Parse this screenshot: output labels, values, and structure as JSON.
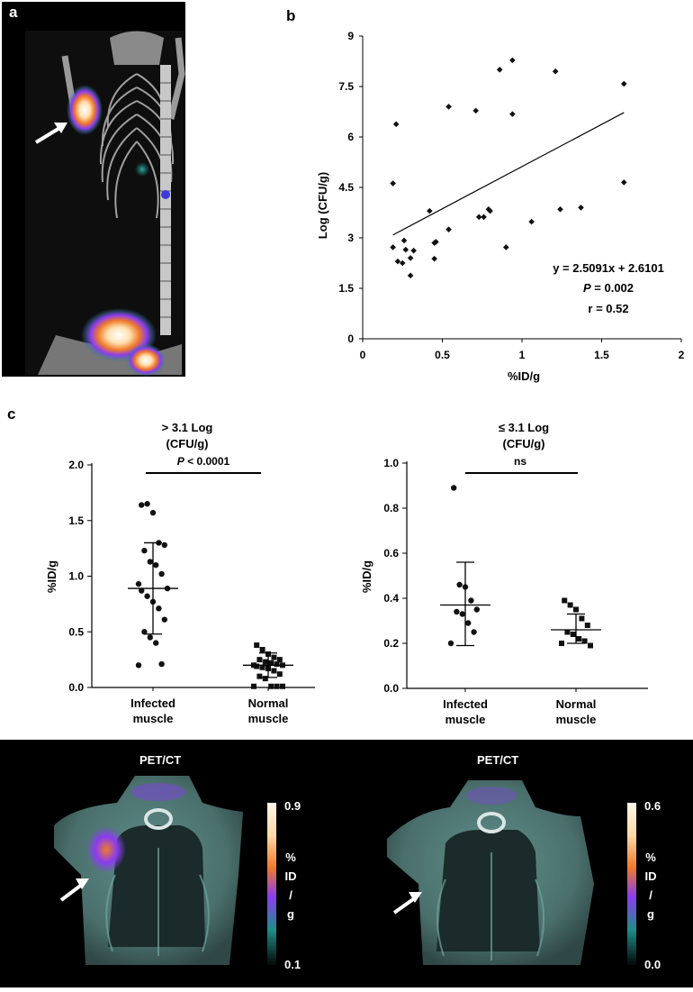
{
  "panels": {
    "a": "a",
    "b": "b",
    "c": "c"
  },
  "chart_data": [
    {
      "id": "b",
      "type": "scatter",
      "title": "",
      "xlabel": "%ID/g",
      "ylabel": "Log (CFU/g)",
      "xlim": [
        0,
        2
      ],
      "ylim": [
        0,
        9
      ],
      "xticks": [
        "0",
        "0.5",
        "1",
        "1.5",
        "2"
      ],
      "yticks": [
        "0",
        "1.5",
        "3",
        "4.5",
        "6",
        "7.5",
        "9"
      ],
      "points": [
        [
          0.19,
          4.62
        ],
        [
          0.21,
          6.38
        ],
        [
          0.19,
          2.72
        ],
        [
          0.22,
          2.3
        ],
        [
          0.25,
          2.25
        ],
        [
          0.26,
          2.92
        ],
        [
          0.27,
          2.65
        ],
        [
          0.3,
          2.4
        ],
        [
          0.32,
          2.62
        ],
        [
          0.3,
          1.88
        ],
        [
          0.42,
          3.8
        ],
        [
          0.45,
          2.38
        ],
        [
          0.45,
          2.85
        ],
        [
          0.46,
          2.88
        ],
        [
          0.54,
          6.9
        ],
        [
          0.54,
          3.25
        ],
        [
          0.71,
          6.78
        ],
        [
          0.73,
          3.62
        ],
        [
          0.76,
          3.62
        ],
        [
          0.79,
          3.85
        ],
        [
          0.8,
          3.8
        ],
        [
          0.86,
          8.0
        ],
        [
          0.9,
          2.72
        ],
        [
          0.94,
          8.28
        ],
        [
          0.94,
          6.68
        ],
        [
          1.06,
          3.48
        ],
        [
          1.21,
          7.95
        ],
        [
          1.24,
          3.85
        ],
        [
          1.37,
          3.9
        ],
        [
          1.64,
          7.58
        ],
        [
          1.64,
          4.65
        ]
      ],
      "regression": {
        "slope": 2.5091,
        "intercept": 2.6101,
        "x_range": [
          0.19,
          1.64
        ]
      },
      "annotations": {
        "equation": "y = 2.5091x + 2.6101",
        "p_label": "P",
        "p_value": " = 0.002",
        "r": "r = 0.52"
      }
    },
    {
      "id": "c-left",
      "type": "scatter",
      "title_line1": "> 3.1 Log",
      "title_line2": "(CFU/g)",
      "ylabel": "%ID/g",
      "ylim": [
        0,
        2.0
      ],
      "yticks": [
        "0.0",
        "0.5",
        "1.0",
        "1.5",
        "2.0"
      ],
      "categories": [
        "Infected muscle",
        "Normal muscle"
      ],
      "category_lines": [
        [
          "Infected",
          "muscle"
        ],
        [
          "Normal",
          "muscle"
        ]
      ],
      "series": [
        {
          "name": "Infected muscle",
          "marker": "circle",
          "mean": 0.89,
          "sd_low": 0.48,
          "sd_high": 1.3,
          "values": [
            1.64,
            1.65,
            1.57,
            1.3,
            1.28,
            1.23,
            1.13,
            1.1,
            1.02,
            0.93,
            0.89,
            0.87,
            0.82,
            0.77,
            0.71,
            0.61,
            0.5,
            0.45,
            0.4,
            0.21,
            0.2
          ]
        },
        {
          "name": "Normal muscle",
          "marker": "square",
          "mean": 0.2,
          "sd_low": 0.09,
          "sd_high": 0.31,
          "values": [
            0.38,
            0.34,
            0.3,
            0.27,
            0.25,
            0.25,
            0.23,
            0.22,
            0.21,
            0.2,
            0.2,
            0.19,
            0.18,
            0.17,
            0.15,
            0.12,
            0.1,
            0.08,
            0.01,
            0.01,
            0.01,
            0.01
          ]
        }
      ],
      "significance": {
        "italic": "P",
        "text": " < 0.0001"
      }
    },
    {
      "id": "c-right",
      "type": "scatter",
      "title_line1": "≤ 3.1 Log",
      "title_line2": "(CFU/g)",
      "ylabel": "%ID/g",
      "ylim": [
        0,
        1.0
      ],
      "yticks": [
        "0.0",
        "0.2",
        "0.4",
        "0.6",
        "0.8",
        "1.0"
      ],
      "categories": [
        "Infected muscle",
        "Normal muscle"
      ],
      "category_lines": [
        [
          "Infected",
          "muscle"
        ],
        [
          "Normal",
          "muscle"
        ]
      ],
      "series": [
        {
          "name": "Infected muscle",
          "marker": "circle",
          "mean": 0.37,
          "sd_low": 0.19,
          "sd_high": 0.56,
          "values": [
            0.89,
            0.46,
            0.45,
            0.39,
            0.35,
            0.34,
            0.33,
            0.29,
            0.25,
            0.2
          ]
        },
        {
          "name": "Normal muscle",
          "marker": "square",
          "mean": 0.26,
          "sd_low": 0.2,
          "sd_high": 0.33,
          "values": [
            0.39,
            0.37,
            0.35,
            0.31,
            0.28,
            0.25,
            0.24,
            0.22,
            0.21,
            0.2,
            0.19
          ]
        }
      ],
      "significance": {
        "italic": "",
        "text": "ns"
      }
    }
  ],
  "pet_ct": {
    "left": {
      "title": "PET/CT",
      "scale_max": "0.9",
      "scale_min": "0.1",
      "unit": [
        "%",
        "ID",
        "/",
        "g"
      ]
    },
    "right": {
      "title": "PET/CT",
      "scale_max": "0.6",
      "scale_min": "0.0",
      "unit": [
        "%",
        "ID",
        "/",
        "g"
      ]
    }
  },
  "colors": {
    "axis": "#000000",
    "marker": "#111111",
    "background_dark": "#000000",
    "scale_top": "#fff6ea",
    "scale_orange": "#f07a2a",
    "scale_purple": "#8a3cf0",
    "scale_teal": "#1f8f8a",
    "scale_bottom": "#050808"
  }
}
